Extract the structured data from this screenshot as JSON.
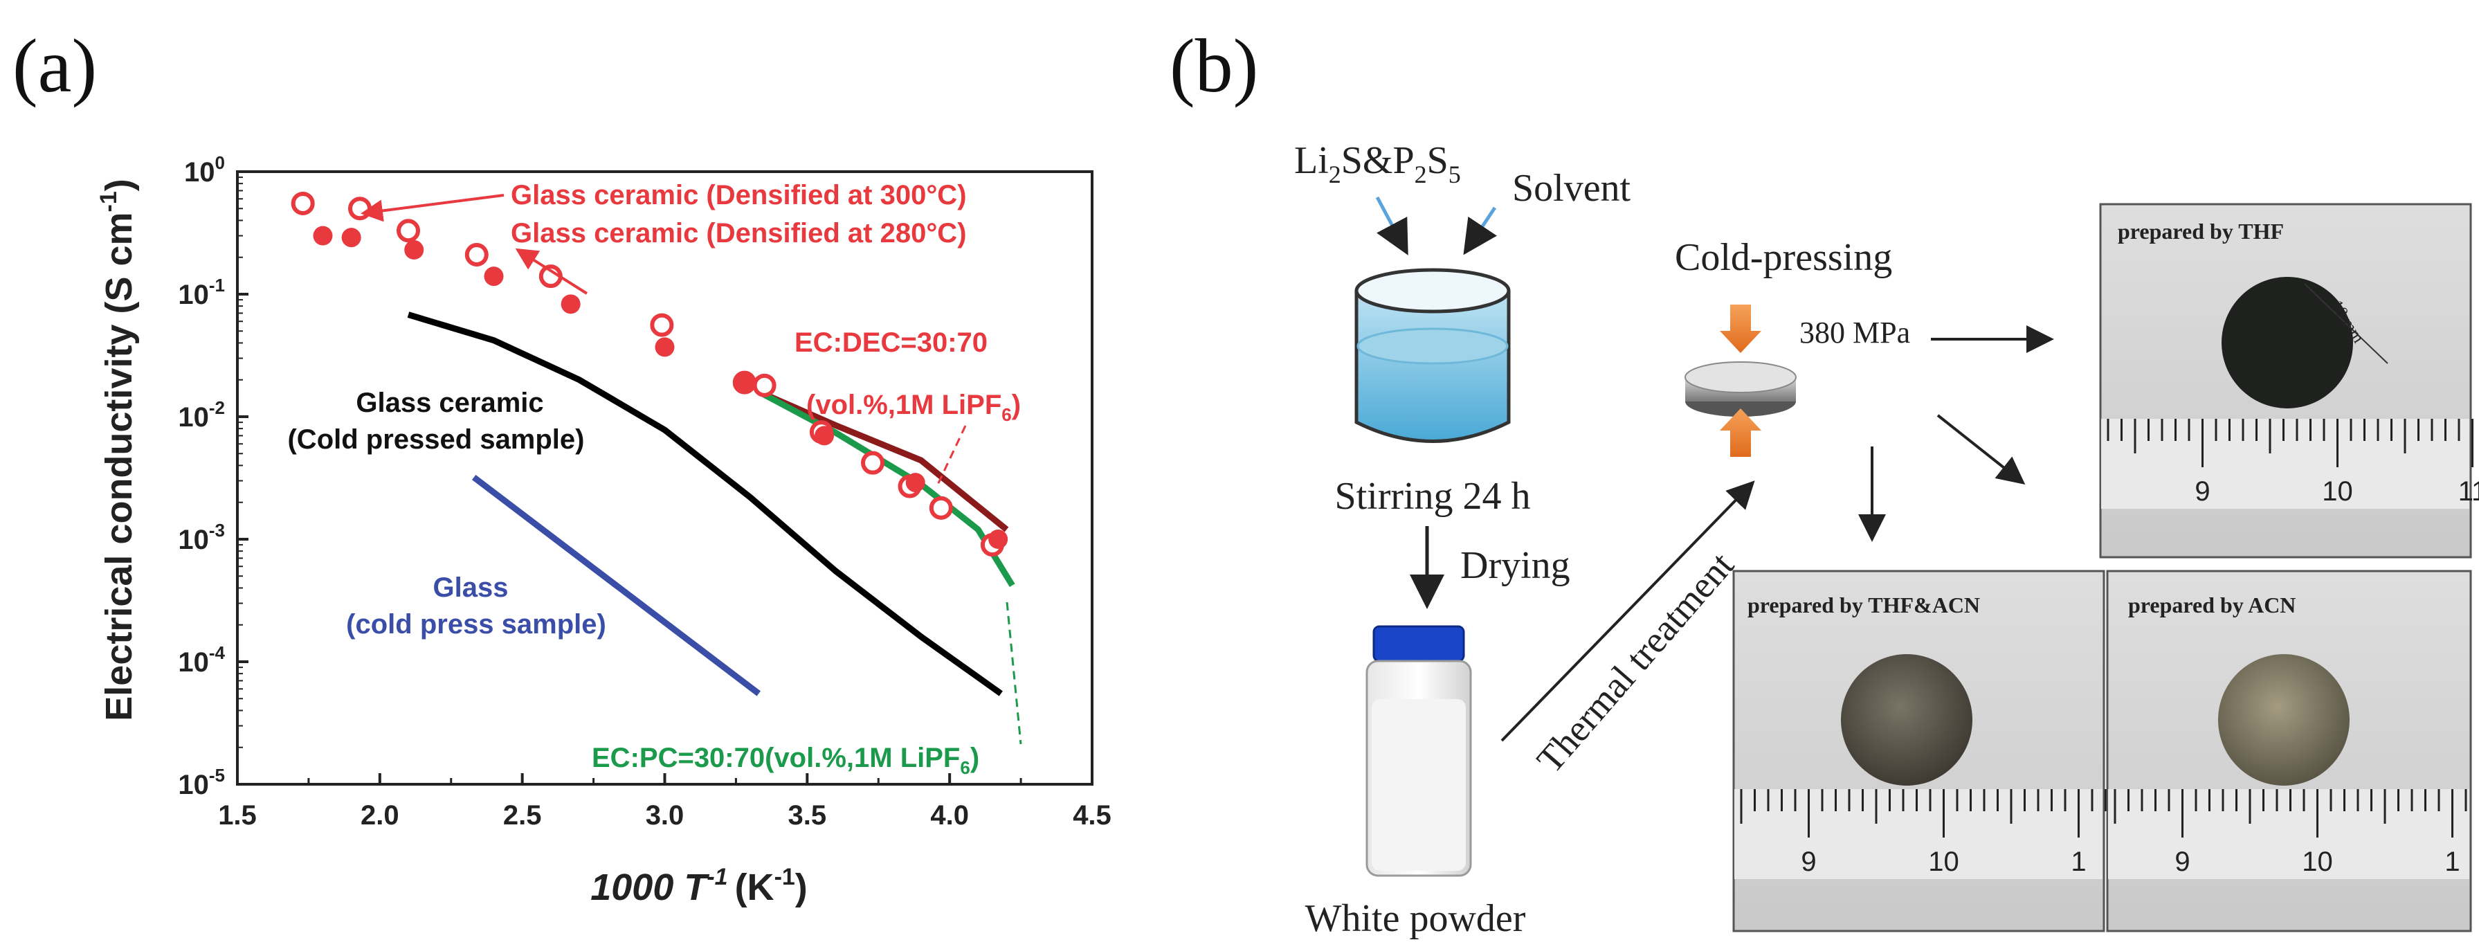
{
  "panel_a": {
    "label": "(a)",
    "chart_data": {
      "type": "scatter",
      "xlabel": "1000 T",
      "xlabel_sup": "-1",
      "xlabel_unit": "(K",
      "xlabel_unit_sup": "-1",
      "xlabel_unit_close": ")",
      "ylabel": "Electrical conductivity  (S cm",
      "ylabel_sup": "-1",
      "ylabel_close": ")",
      "xlim": [
        1.5,
        4.5
      ],
      "ylim_log10": [
        -5,
        0
      ],
      "yscale": "log",
      "x_ticks": [
        "1.5",
        "2.0",
        "2.5",
        "3.0",
        "3.5",
        "4.0",
        "4.5"
      ],
      "y_ticks": [
        {
          "base": "10",
          "exp": "0"
        },
        {
          "base": "10",
          "exp": "-1"
        },
        {
          "base": "10",
          "exp": "-2"
        },
        {
          "base": "10",
          "exp": "-3"
        },
        {
          "base": "10",
          "exp": "-4"
        },
        {
          "base": "10",
          "exp": "-5"
        }
      ],
      "series": [
        {
          "marker": "open-circle",
          "color": "#e8393f",
          "points": [
            [
              1.73,
              0.55
            ],
            [
              1.93,
              0.5
            ],
            [
              2.1,
              0.33
            ],
            [
              2.34,
              0.21
            ],
            [
              2.6,
              0.14
            ],
            [
              2.99,
              0.056
            ],
            [
              3.28,
              0.019
            ],
            [
              3.35,
              0.018
            ],
            [
              3.55,
              0.0075
            ],
            [
              3.73,
              0.0042
            ],
            [
              3.86,
              0.0027
            ],
            [
              3.97,
              0.0018
            ],
            [
              4.15,
              0.0009
            ]
          ]
        },
        {
          "marker": "filled-circle",
          "color": "#e8393f",
          "points": [
            [
              1.8,
              0.3
            ],
            [
              1.9,
              0.29
            ],
            [
              2.12,
              0.23
            ],
            [
              2.4,
              0.14
            ],
            [
              2.67,
              0.083
            ],
            [
              3.0,
              0.037
            ],
            [
              3.28,
              0.019
            ],
            [
              3.56,
              0.007
            ],
            [
              3.88,
              0.0029
            ],
            [
              4.17,
              0.001
            ]
          ]
        },
        {
          "line": true,
          "color": "#000000",
          "points": [
            [
              2.1,
              0.068
            ],
            [
              2.4,
              0.042
            ],
            [
              2.7,
              0.02
            ],
            [
              3.0,
              0.0078
            ],
            [
              3.3,
              0.0022
            ],
            [
              3.6,
              0.00055
            ],
            [
              3.9,
              0.00016
            ],
            [
              4.18,
              5.5e-05
            ]
          ]
        },
        {
          "line": true,
          "color": "#3a4ea8",
          "points": [
            [
              2.33,
              0.0032
            ],
            [
              3.33,
              5.5e-05
            ]
          ]
        },
        {
          "line": true,
          "color": "#8b1a1a",
          "points": [
            [
              3.33,
              0.016
            ],
            [
              3.6,
              0.0085
            ],
            [
              3.9,
              0.0044
            ],
            [
              4.2,
              0.0012
            ]
          ]
        },
        {
          "line": true,
          "color": "#1a9a4a",
          "points": [
            [
              3.33,
              0.016
            ],
            [
              3.6,
              0.0074
            ],
            [
              3.9,
              0.0028
            ],
            [
              4.1,
              0.0012
            ],
            [
              4.22,
              0.00042
            ]
          ]
        }
      ],
      "annotations": {
        "gc300": "Glass ceramic (Densified at 300°C)",
        "gc280": "Glass ceramic (Densified at 280°C)",
        "ecdec_line1": "EC:DEC=30:70",
        "ecdec_line2": "(vol.%,1M LiPF",
        "ecdec_sub": "6",
        "ecdec_close": ")",
        "gc_cold_line1": "Glass ceramic",
        "gc_cold_line2": "(Cold pressed sample)",
        "glass_line1": "Glass",
        "glass_line2": "(cold press sample)",
        "ecpc": "EC:PC=30:70(vol.%,1M LiPF",
        "ecpc_sub": "6",
        "ecpc_close": ")"
      },
      "colors": {
        "red": "#e8393f",
        "black": "#000000",
        "blue": "#3a4ea8",
        "darkred": "#8b1a1a",
        "green": "#1a9a4a"
      }
    }
  },
  "panel_b": {
    "label": "(b)",
    "precursor_pre": "Li",
    "precursor_sub1": "2",
    "precursor_mid": "S&P",
    "precursor_sub2": "2",
    "precursor_mid2": "S",
    "precursor_sub3": "5",
    "solvent": "Solvent",
    "stirring": "Stirring 24 h",
    "drying": "Drying",
    "white_powder": "White powder",
    "thermal": "Thermal treatment",
    "cold_pressing": "Cold-pressing",
    "pressure": "380 MPa",
    "photos": {
      "thf": {
        "label": "prepared by THF",
        "dimension": "10 mm",
        "ruler": [
          "9",
          "10",
          "11"
        ]
      },
      "thf_acn": {
        "label": "prepared by THF&ACN",
        "ruler": [
          "9",
          "10",
          "1"
        ]
      },
      "acn": {
        "label": "prepared by ACN",
        "ruler": [
          "9",
          "10",
          "1"
        ]
      }
    }
  }
}
